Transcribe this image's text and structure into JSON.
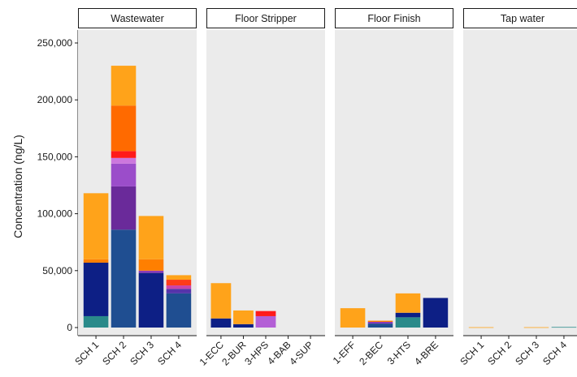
{
  "chart_data": {
    "type": "bar",
    "stacked": true,
    "ylabel": "Concentration (ng/L)",
    "ylim": [
      0,
      260000
    ],
    "yticks": [
      0,
      50000,
      100000,
      150000,
      200000,
      250000
    ],
    "ytick_labels": [
      "0",
      "50,000",
      "100,000",
      "150,000",
      "200,000",
      "250,000"
    ],
    "grid": false,
    "legend": "none",
    "panels": [
      {
        "name": "Wastewater",
        "categories": [
          "SCH 1",
          "SCH 2",
          "SCH 3",
          "SCH 4"
        ],
        "stacks": [
          [
            {
              "color": "#2a8a8a",
              "value": 10000
            },
            {
              "color": "#0d1f85",
              "value": 47000
            },
            {
              "color": "#ff7f00",
              "value": 3000
            },
            {
              "color": "#ffa31a",
              "value": 58000
            }
          ],
          [
            {
              "color": "#1f4e91",
              "value": 86000
            },
            {
              "color": "#6a2a9a",
              "value": 38000
            },
            {
              "color": "#9b4dca",
              "value": 20000
            },
            {
              "color": "#cc77dd",
              "value": 5000
            },
            {
              "color": "#ff1a1a",
              "value": 6000
            },
            {
              "color": "#ff6a00",
              "value": 40000
            },
            {
              "color": "#ffa31a",
              "value": 35000
            }
          ],
          [
            {
              "color": "#0d1f85",
              "value": 48000
            },
            {
              "color": "#8a3ab9",
              "value": 2000
            },
            {
              "color": "#ff7f00",
              "value": 10000
            },
            {
              "color": "#ffa31a",
              "value": 38000
            }
          ],
          [
            {
              "color": "#1f4e91",
              "value": 30000
            },
            {
              "color": "#5533aa",
              "value": 4000
            },
            {
              "color": "#cc44aa",
              "value": 3000
            },
            {
              "color": "#ff3b1a",
              "value": 5000
            },
            {
              "color": "#ffa31a",
              "value": 4000
            }
          ]
        ]
      },
      {
        "name": "Floor Stripper",
        "categories": [
          "1-ECC",
          "2-BUR",
          "3-HPS",
          "4-BAB",
          "4-SUP"
        ],
        "stacks": [
          [
            {
              "color": "#0d1f85",
              "value": 8000
            },
            {
              "color": "#ffa31a",
              "value": 31000
            }
          ],
          [
            {
              "color": "#0d1f85",
              "value": 3000
            },
            {
              "color": "#ffa31a",
              "value": 12000
            }
          ],
          [
            {
              "color": "#b35fd6",
              "value": 10000
            },
            {
              "color": "#ff1a1a",
              "value": 4500
            }
          ],
          [],
          []
        ]
      },
      {
        "name": "Floor Finish",
        "categories": [
          "1-EFF",
          "2-BEC",
          "3-HTS",
          "4-BRE"
        ],
        "stacks": [
          [
            {
              "color": "#ffa31a",
              "value": 17000
            }
          ],
          [
            {
              "color": "#1f4e91",
              "value": 3500
            },
            {
              "color": "#8a3ab9",
              "value": 1500
            },
            {
              "color": "#ff7f00",
              "value": 1000
            }
          ],
          [
            {
              "color": "#2a8a8a",
              "value": 9000
            },
            {
              "color": "#0d1f85",
              "value": 4000
            },
            {
              "color": "#ffa31a",
              "value": 17000
            }
          ],
          [
            {
              "color": "#0d1f85",
              "value": 26000
            }
          ]
        ]
      },
      {
        "name": "Tap water",
        "categories": [
          "SCH 1",
          "SCH 2",
          "SCH 3",
          "SCH 4"
        ],
        "stacks": [
          [
            {
              "color": "#ffa31a",
              "value": 300
            }
          ],
          [],
          [
            {
              "color": "#ffa31a",
              "value": 300
            }
          ],
          [
            {
              "color": "#2a8a8a",
              "value": 500
            }
          ]
        ]
      }
    ]
  }
}
